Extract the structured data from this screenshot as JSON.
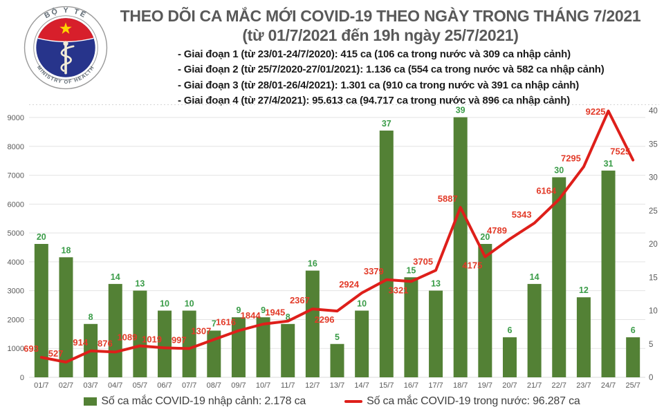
{
  "header": {
    "title": "THEO DÕI CA MẮC MỚI COVID-19 THEO NGÀY TRONG THÁNG 7/2021",
    "subtitle": "(từ 01/7/2021 đến 19h ngày 25/7/2021)",
    "bullets": [
      "- Giai đoạn 1 (từ 23/01-24/7/2020): 415 ca (106 ca trong nước và 309 ca nhập cảnh)",
      "- Giai đoạn 2 (từ 25/7/2020-27/01/2021): 1.136 ca (554 ca trong nước và 582 ca nhập cảnh)",
      "- Giai đoạn 3 (từ 28/01-26/4/2021): 1.301 ca (910 ca trong nước và 391 ca nhập cảnh)",
      "- Giai đoạn 4 (từ 27/4/2021): 95.613 ca (94.717 ca trong nước và 896 ca nhập cảnh)"
    ],
    "logo": {
      "top_text": "BỘ Y TẾ",
      "bottom_text": "MINISTRY OF HEALTH"
    }
  },
  "chart_data": {
    "type": "bar+line",
    "title": "THEO DÕI CA MẮC MỚI COVID-19 THEO NGÀY TRONG THÁNG 7/2021",
    "categories": [
      "01/7",
      "02/7",
      "03/7",
      "04/7",
      "05/7",
      "06/7",
      "07/7",
      "08/7",
      "09/7",
      "10/7",
      "11/7",
      "12/7",
      "13/7",
      "14/7",
      "15/7",
      "16/7",
      "17/7",
      "18/7",
      "19/7",
      "20/7",
      "21/7",
      "22/7",
      "23/7",
      "24/7",
      "25/7"
    ],
    "series": [
      {
        "name": "Số ca mắc COVID-19 nhập cảnh",
        "type": "bar",
        "axis": "right",
        "color": "#538135",
        "values": [
          20,
          18,
          8,
          14,
          13,
          10,
          10,
          7,
          9,
          9,
          8,
          16,
          5,
          10,
          37,
          15,
          13,
          39,
          20,
          6,
          14,
          30,
          12,
          31,
          6
        ]
      },
      {
        "name": "Số ca mắc COVID-19 trong nước",
        "type": "line",
        "axis": "left",
        "color": "#de1f1a",
        "values": [
          693,
          527,
          914,
          876,
          1089,
          1019,
          997,
          1307,
          1616,
          1844,
          1945,
          2367,
          2296,
          2924,
          3379,
          3321,
          3705,
          5887,
          4175,
          4789,
          5343,
          6164,
          7295,
          9225,
          7525
        ]
      }
    ],
    "left_axis": {
      "min": 0,
      "max": 9000,
      "step": 1000,
      "ticks": [
        0,
        1000,
        2000,
        3000,
        4000,
        5000,
        6000,
        7000,
        8000,
        9000
      ]
    },
    "right_axis": {
      "min": 0,
      "max": 40,
      "step": 5,
      "ticks": [
        0,
        5,
        10,
        15,
        20,
        25,
        30,
        35,
        40
      ]
    },
    "grid": true,
    "legend_position": "bottom",
    "bar_label_color": "#3a9c48",
    "line_label_color": "#e23a28",
    "axis_label_color": "#595959",
    "label_below_indices": [
      12,
      15,
      18
    ]
  },
  "legend": {
    "bar_label": "Số ca mắc COVID-19 nhập cảnh: 2.178 ca",
    "line_label": "Số ca mắc COVID-19 trong nước: 96.287 ca"
  },
  "colors": {
    "bar_green": "#538135",
    "line_red": "#de1f1a",
    "title_gray": "#595959",
    "logo_blue": "#27348b",
    "logo_red": "#d71f2b",
    "logo_star_yellow": "#ffd400"
  }
}
